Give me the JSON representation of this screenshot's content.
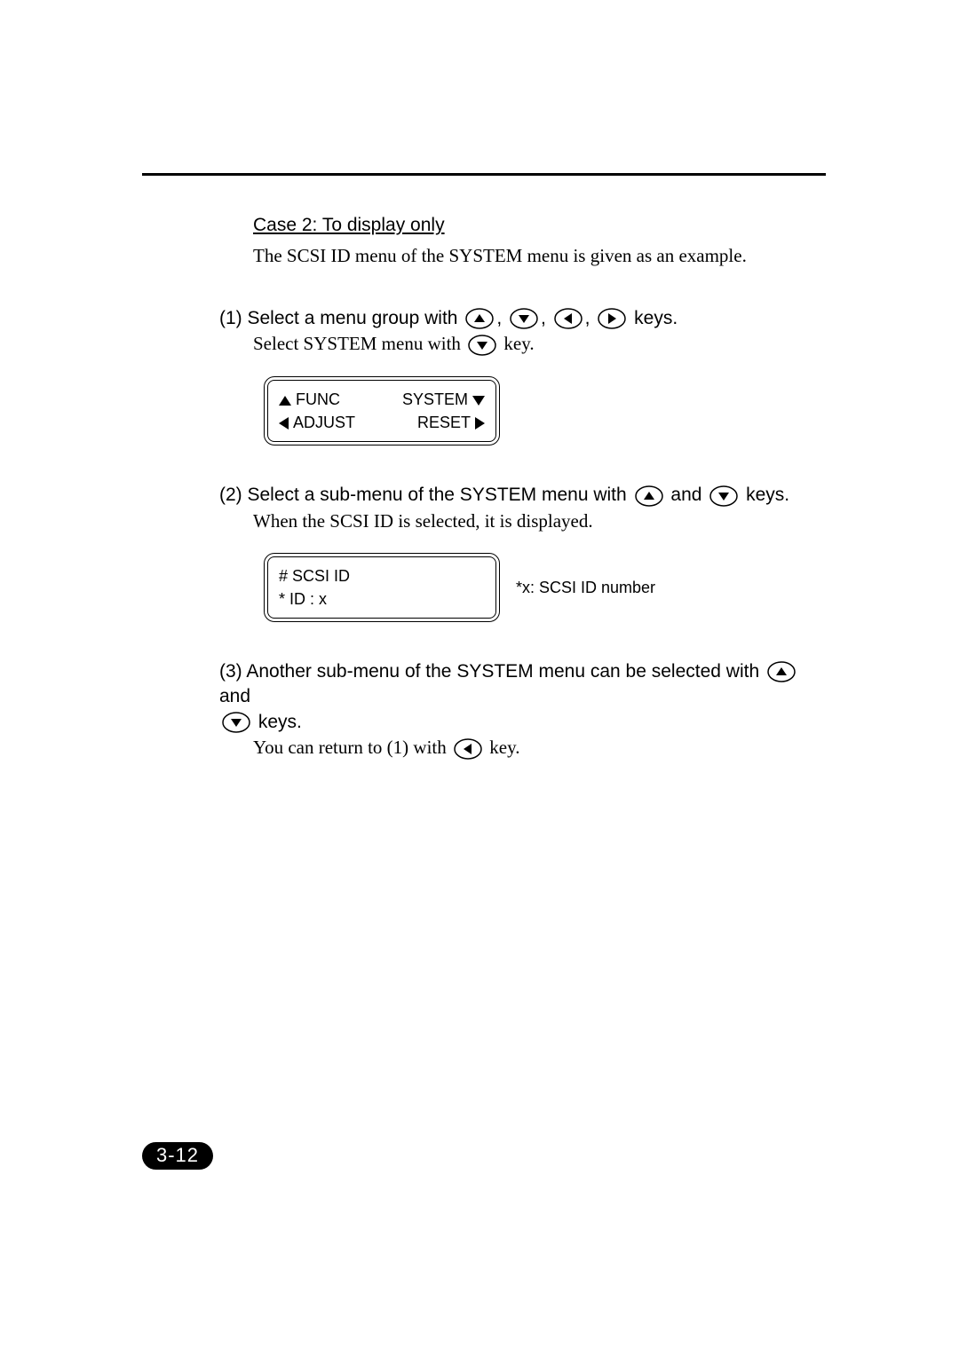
{
  "page_number": "3-12",
  "case_heading": "Case 2: To display only",
  "case_intro": "The SCSI ID menu of the SYSTEM menu is given as an example.",
  "step1": {
    "prefix": "(1) Select a menu group with ",
    "mid_text": " keys.",
    "line2_a": "Select SYSTEM menu with ",
    "line2_b": " key."
  },
  "lcd1": {
    "func": "FUNC",
    "system": "SYSTEM",
    "adjust": "ADJUST",
    "reset": "RESET"
  },
  "step2": {
    "prefix": "(2) Select a sub-menu of the SYSTEM menu with ",
    "mid": " and ",
    "suffix": " keys.",
    "line2": "When the SCSI ID is selected, it is displayed."
  },
  "lcd2": {
    "line1": "# SCSI ID",
    "line2": "* ID : x",
    "aside": "*x: SCSI ID number"
  },
  "step3": {
    "prefix": "(3) Another sub-menu of the SYSTEM menu can be selected with ",
    "mid": " and",
    "suffix": " keys.",
    "line3a": "You can return to (1) with ",
    "line3b": " key."
  },
  "icons": {
    "ellipse_rx": 15,
    "ellipse_ry": 11,
    "stroke": "#000000",
    "stroke_width": 1.5,
    "arrow_size": 7
  },
  "colors": {
    "text": "#000000",
    "background": "#ffffff",
    "badge_bg": "#000000",
    "badge_fg": "#ffffff"
  }
}
